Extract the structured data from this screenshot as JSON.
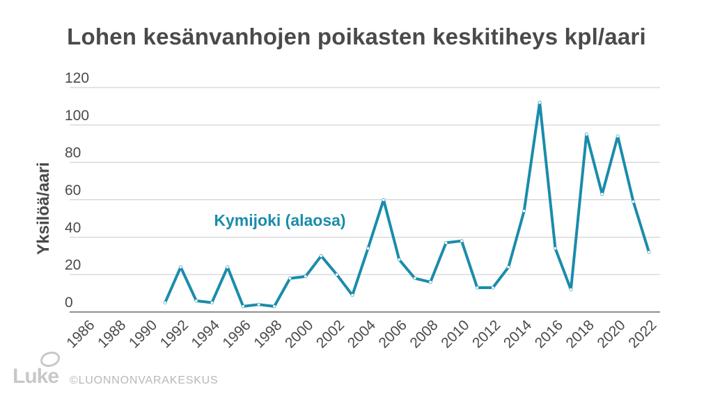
{
  "chart_data": {
    "type": "line",
    "title": "Lohen kesänvanhojen poikasten keskitiheys kpl/aari",
    "ylabel": "Yksilöä/aari",
    "xlabel": "",
    "ylim": [
      0,
      120
    ],
    "yticks": [
      0,
      20,
      40,
      60,
      80,
      100,
      120
    ],
    "xlim": [
      1986,
      2022
    ],
    "xticks": [
      "1986",
      "1988",
      "1990",
      "1992",
      "1994",
      "1996",
      "1998",
      "2000",
      "2002",
      "2004",
      "2006",
      "2008",
      "2010",
      "2012",
      "2014",
      "2016",
      "2018",
      "2020",
      "2022"
    ],
    "grid": true,
    "series": [
      {
        "name": "Kymijoki (alaosa)",
        "color": "#1a8caa",
        "x": [
          1991,
          1992,
          1993,
          1994,
          1995,
          1996,
          1997,
          1998,
          1999,
          2000,
          2001,
          2002,
          2003,
          2004,
          2005,
          2006,
          2007,
          2008,
          2009,
          2010,
          2011,
          2012,
          2013,
          2014,
          2015,
          2016,
          2017,
          2018,
          2019,
          2020,
          2021,
          2022
        ],
        "y": [
          5,
          24,
          6,
          5,
          24,
          3,
          4,
          3,
          18,
          19,
          30,
          20,
          9,
          34,
          60,
          28,
          18,
          16,
          37,
          38,
          13,
          13,
          24,
          54,
          112,
          34,
          12,
          95,
          63,
          94,
          59,
          32
        ]
      }
    ]
  },
  "footer": {
    "logo_text": "Luke",
    "copyright": "©LUONNONVARAKESKUS"
  }
}
